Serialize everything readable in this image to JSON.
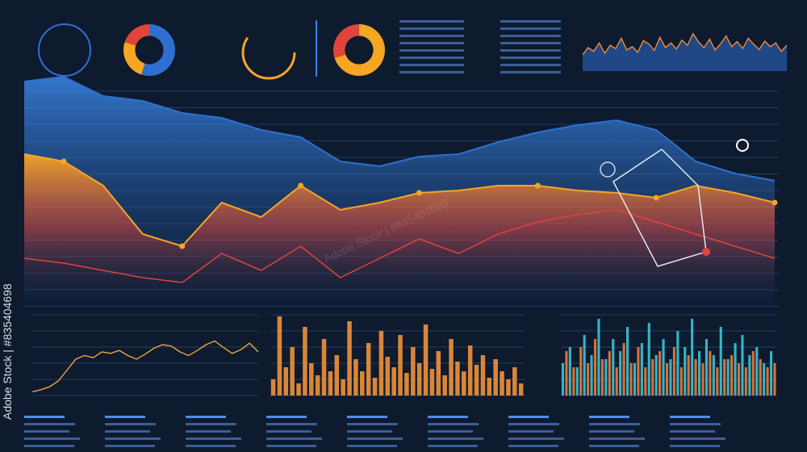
{
  "watermark": "Adobe Stock | #835404698",
  "chart_data": [
    {
      "type": "line",
      "ylim": [
        0,
        100
      ],
      "series": [
        {
          "color": "#f08a3c",
          "values": [
            35,
            50,
            42,
            60,
            38,
            55,
            48,
            70,
            45,
            52,
            40,
            65,
            58,
            44,
            72,
            50,
            60,
            47,
            66,
            55,
            80,
            62,
            50,
            68,
            45,
            58,
            75,
            52,
            63,
            48,
            70,
            57,
            46,
            64,
            52,
            60,
            42,
            55
          ]
        }
      ]
    },
    {
      "type": "area",
      "ylim": [
        0,
        100
      ],
      "series": [
        {
          "color": "#2f6fd1",
          "values": [
            93,
            95,
            87,
            85,
            80,
            78,
            73,
            70,
            60,
            58,
            62,
            63,
            68,
            72,
            75,
            77,
            73,
            60,
            55,
            52
          ]
        },
        {
          "color": "#f5a623",
          "values": [
            63,
            60,
            50,
            30,
            25,
            43,
            37,
            50,
            40,
            43,
            47,
            48,
            50,
            50,
            48,
            47,
            45,
            50,
            47,
            43
          ]
        },
        {
          "color": "#e0443a",
          "values": [
            20,
            18,
            15,
            12,
            10,
            22,
            15,
            25,
            12,
            20,
            28,
            22,
            30,
            35,
            38,
            40,
            35,
            30,
            25,
            20
          ]
        }
      ]
    },
    {
      "type": "line",
      "ylim": [
        0,
        100
      ],
      "series": [
        {
          "color": "#e9a640",
          "values": [
            5,
            8,
            12,
            20,
            35,
            50,
            55,
            52,
            60,
            58,
            62,
            55,
            50,
            57,
            65,
            70,
            68,
            60,
            55,
            62,
            70,
            75,
            66,
            58,
            63,
            72,
            60
          ]
        }
      ]
    },
    {
      "type": "bar",
      "ylim": [
        0,
        100
      ],
      "series": [
        {
          "color": "#f0923a",
          "values": [
            20,
            98,
            35,
            60,
            15,
            85,
            40,
            25,
            70,
            30,
            50,
            20,
            92,
            45,
            30,
            65,
            22,
            80,
            48,
            35,
            75,
            28,
            60,
            40,
            88,
            33,
            55,
            25,
            70,
            42,
            30,
            62,
            38,
            50,
            22,
            45,
            30,
            20,
            35,
            15
          ]
        }
      ]
    },
    {
      "type": "bar",
      "ylim": [
        0,
        100
      ],
      "series": [
        {
          "color": "#38c6d6",
          "values": [
            40,
            60,
            35,
            75,
            50,
            95,
            45,
            70,
            55,
            85,
            40,
            65,
            90,
            50,
            70,
            45,
            80,
            60,
            95,
            55,
            70,
            50,
            85,
            45,
            65,
            75,
            50,
            60,
            40,
            55
          ]
        },
        {
          "color": "#f07a3a",
          "values": [
            55,
            35,
            60,
            40,
            70,
            45,
            55,
            35,
            65,
            40,
            60,
            35,
            45,
            55,
            40,
            60,
            35,
            50,
            45,
            40,
            55,
            35,
            45,
            50,
            40,
            35,
            55,
            45,
            35,
            40
          ]
        }
      ]
    },
    {
      "type": "pie",
      "colors": [
        "#2f6fd1",
        "#f5a623",
        "#e0443a"
      ],
      "values": [
        55,
        25,
        20
      ]
    },
    {
      "type": "pie",
      "colors": [
        "#f5a623",
        "#e0443a"
      ],
      "values": [
        70,
        30
      ]
    }
  ]
}
